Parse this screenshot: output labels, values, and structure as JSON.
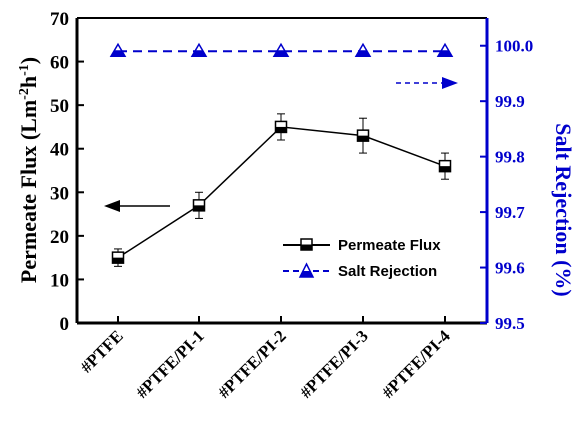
{
  "chart_data": {
    "type": "line",
    "categories": [
      "#PTFE",
      "#PTFE/PI-1",
      "#PTFE/PI-2",
      "#PTFE/PI-3",
      "#PTFE/PI-4"
    ],
    "series": [
      {
        "name": "Permeate Flux",
        "axis": "left",
        "values": [
          15,
          27,
          45,
          43,
          36
        ],
        "error": [
          2,
          3,
          3,
          4,
          3
        ],
        "color": "#000000",
        "marker": "half-filled-square",
        "line_style": "solid"
      },
      {
        "name": "Salt Rejection",
        "axis": "right",
        "values": [
          99.99,
          99.99,
          99.99,
          99.99,
          99.99
        ],
        "color": "#0000cc",
        "marker": "half-filled-triangle",
        "line_style": "dashed"
      }
    ],
    "y_left": {
      "label": "Permeate Flux (Lm",
      "label_sup1": "-2",
      "label_mid": "h",
      "label_sup2": "-1",
      "label_end": ")",
      "ylim": [
        0,
        70
      ],
      "ticks": [
        "0",
        "10",
        "20",
        "30",
        "40",
        "50",
        "60",
        "70"
      ]
    },
    "y_right": {
      "label": "Salt Rejection (%)",
      "ylim": [
        99.5,
        100.05
      ],
      "ticks": [
        "99.5",
        "99.6",
        "99.7",
        "99.8",
        "99.9",
        "100.0"
      ]
    },
    "legend": {
      "position": "bottom-right",
      "entries": [
        "Permeate Flux",
        "Salt Rejection"
      ]
    },
    "annotations": [
      {
        "type": "arrow",
        "direction": "left",
        "series": "Permeate Flux",
        "color": "#000000"
      },
      {
        "type": "arrow",
        "direction": "right",
        "series": "Salt Rejection",
        "color": "#0000cc",
        "line_style": "dashed"
      }
    ],
    "grid": false
  }
}
